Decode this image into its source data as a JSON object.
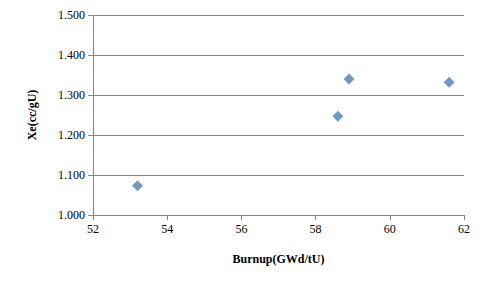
{
  "chart_data": {
    "type": "scatter",
    "x_label": "Burnup(GWd/tU)",
    "y_label": "Xe(cc/gU)",
    "x": [
      53.2,
      58.6,
      58.9,
      61.6
    ],
    "values": [
      1.073,
      1.247,
      1.34,
      1.332
    ],
    "color": "#4a7ebb",
    "marker": "diamond",
    "xlim": [
      52,
      62
    ],
    "xticks": [
      52,
      54,
      56,
      58,
      60,
      62
    ],
    "ylim": [
      1.0,
      1.5
    ],
    "yticks": [
      {
        "value": 1.0,
        "label": "1.000"
      },
      {
        "value": 1.1,
        "label": "1.100"
      },
      {
        "value": 1.2,
        "label": "1.200"
      },
      {
        "value": 1.3,
        "label": "1.300"
      },
      {
        "value": 1.4,
        "label": "1.400"
      },
      {
        "value": 1.5,
        "label": "1.500"
      }
    ],
    "grid": true
  }
}
